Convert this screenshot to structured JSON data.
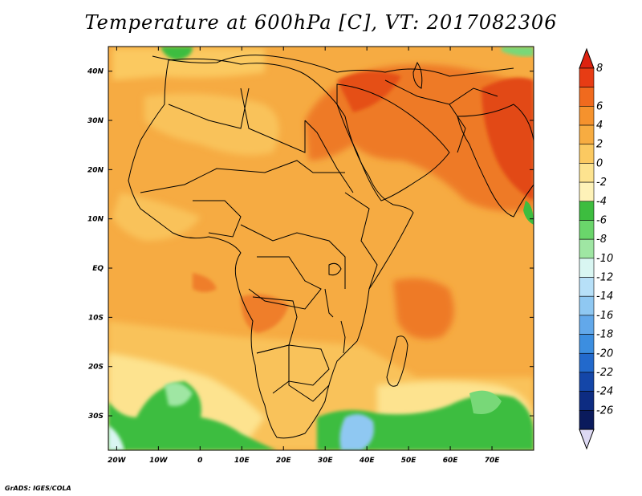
{
  "title": "Temperature at 600hPa [C], VT: 2017082306",
  "footer": "GrADS: IGES/COLA",
  "axes": {
    "lat_labels": [
      "40N",
      "30N",
      "20N",
      "10N",
      "EQ",
      "10S",
      "20S",
      "30S"
    ],
    "lat_values": [
      40,
      30,
      20,
      10,
      0,
      -10,
      -20,
      -30
    ],
    "lon_labels": [
      "20W",
      "10W",
      "0",
      "10E",
      "20E",
      "30E",
      "40E",
      "50E",
      "60E",
      "70E"
    ],
    "lon_values": [
      -20,
      -10,
      0,
      10,
      20,
      30,
      40,
      50,
      60,
      70
    ],
    "lat_range": [
      -37,
      45
    ],
    "lon_range": [
      -22,
      80
    ]
  },
  "colorbar": {
    "labels": [
      "8",
      "6",
      "4",
      "2",
      "0",
      "-2",
      "-4",
      "-6",
      "-8",
      "-10",
      "-12",
      "-14",
      "-16",
      "-18",
      "-20",
      "-22",
      "-24",
      "-26"
    ],
    "colors": [
      "#e73c14",
      "#f06a1e",
      "#f5922d",
      "#f7ac41",
      "#fbc961",
      "#fde38f",
      "#fef2b8",
      "#3dbd3f",
      "#6ad56b",
      "#9fe6a3",
      "#d9f6f2",
      "#b7e0f8",
      "#8fc8f2",
      "#62a8ea",
      "#3c8ee0",
      "#2269cc",
      "#1446a8",
      "#0d2c82",
      "#0a1a5c"
    ],
    "top_color": "#dd2210",
    "bottom_color": "#ddd9f3"
  },
  "colors": {
    "warm_light": "#f9c25a",
    "warm_mid": "#f5a23a",
    "warm_hot": "#ee6a20",
    "warm_hottest": "#e23c14",
    "cool_yellow": "#fde38f",
    "cool_green": "#3dbd3f",
    "cool_lightgreen": "#78d878",
    "cool_blue": "#8fc8f2"
  }
}
